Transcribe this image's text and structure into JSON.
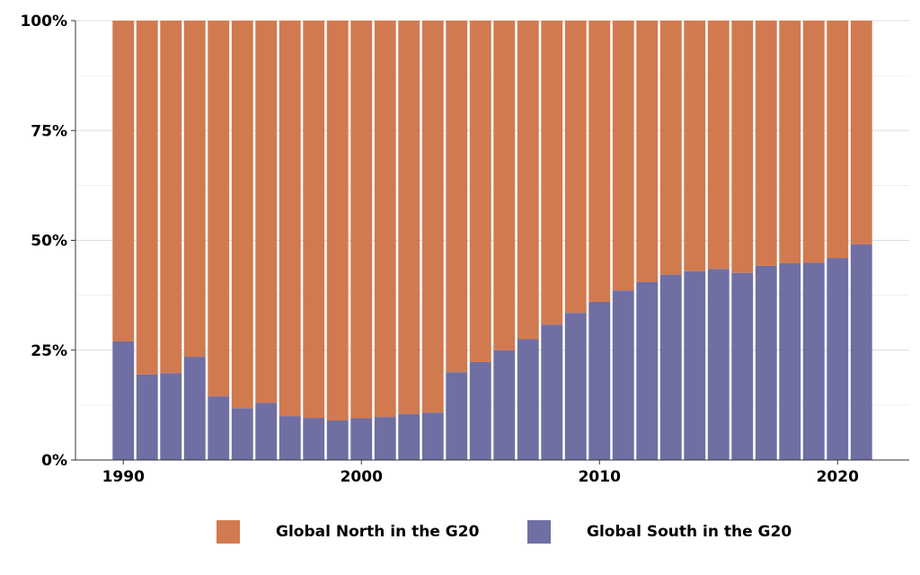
{
  "chart_data": {
    "type": "bar",
    "stacked": true,
    "normalized": true,
    "x": [
      1990,
      1991,
      1992,
      1993,
      1994,
      1995,
      1996,
      1997,
      1998,
      1999,
      2000,
      2001,
      2002,
      2003,
      2004,
      2005,
      2006,
      2007,
      2008,
      2009,
      2010,
      2011,
      2012,
      2013,
      2014,
      2015,
      2016,
      2017,
      2018,
      2019,
      2020,
      2021
    ],
    "series": [
      {
        "name": "Global South in the G20",
        "color": "#6f6fa3",
        "values": [
          27,
          19.5,
          19.8,
          23.5,
          14.5,
          11.8,
          13,
          10,
          9.6,
          9,
          9.5,
          9.8,
          10.5,
          10.8,
          20,
          22.3,
          25,
          27.5,
          30.8,
          33.5,
          36,
          38.6,
          40.5,
          42.2,
          43,
          43.5,
          42.6,
          44.2,
          44.8,
          44.9,
          46,
          49.1
        ]
      },
      {
        "name": "Global North in the G20",
        "color": "#d17a50",
        "values": [
          73,
          80.5,
          80.2,
          76.5,
          85.5,
          88.2,
          87,
          90,
          90.4,
          91,
          90.5,
          90.2,
          89.5,
          89.2,
          80,
          77.7,
          75,
          72.5,
          69.2,
          66.5,
          64,
          61.4,
          59.5,
          57.8,
          57,
          56.5,
          57.4,
          55.8,
          55.2,
          55.1,
          54,
          50.9
        ]
      }
    ],
    "xticks": [
      "1990",
      "2000",
      "2010",
      "2020"
    ],
    "xtick_values": [
      1990,
      2000,
      2010,
      2020
    ],
    "yticks": [
      "0%",
      "25%",
      "50%",
      "75%",
      "100%"
    ],
    "ytick_values": [
      0,
      25,
      50,
      75,
      100
    ],
    "ylim": [
      0,
      100
    ],
    "xlabel": "",
    "ylabel": "",
    "grid": true,
    "legend_position": "bottom"
  },
  "legend": {
    "north_label": "Global North in the G20",
    "south_label": "Global South in the G20",
    "north_color": "#d17a50",
    "south_color": "#6f6fa3"
  }
}
